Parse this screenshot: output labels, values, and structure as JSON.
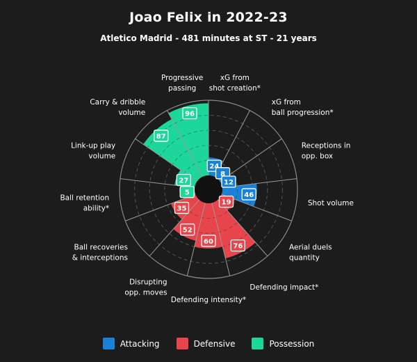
{
  "title": "Joao Felix in 2022-23",
  "subtitle": "Atletico Madrid - 481 minutes at ST - 21 years",
  "colors": {
    "Attacking": "#1a82d6",
    "Defensive": "#e8444c",
    "Possession": "#1dd69a",
    "background": "#1c1c1c",
    "grid": "#6a6a6a"
  },
  "legend": [
    {
      "label": "Attacking",
      "color": "#1a82d6"
    },
    {
      "label": "Defensive",
      "color": "#e8444c"
    },
    {
      "label": "Possession",
      "color": "#1dd69a"
    }
  ],
  "chart_data": {
    "type": "polar-bar",
    "range": [
      0,
      100
    ],
    "gridlines": [
      20,
      40,
      60,
      80
    ],
    "metrics": [
      {
        "label": [
          "xG from",
          "shot creation*"
        ],
        "value": 24,
        "group": "Attacking"
      },
      {
        "label": [
          "xG from",
          "ball progression*"
        ],
        "value": 8,
        "group": "Attacking"
      },
      {
        "label": [
          "Receptions in",
          "opp. box"
        ],
        "value": 12,
        "group": "Attacking"
      },
      {
        "label": [
          "Shot volume"
        ],
        "value": 46,
        "group": "Attacking"
      },
      {
        "label": [
          "Aerial duels",
          "quantity"
        ],
        "value": 19,
        "group": "Defensive"
      },
      {
        "label": [
          "Defending impact*"
        ],
        "value": 76,
        "group": "Defensive"
      },
      {
        "label": [
          "Defending intensity*"
        ],
        "value": 60,
        "group": "Defensive"
      },
      {
        "label": [
          "Disrupting",
          "opp. moves"
        ],
        "value": 52,
        "group": "Defensive"
      },
      {
        "label": [
          "Ball recoveries",
          "& interceptions"
        ],
        "value": 35,
        "group": "Defensive"
      },
      {
        "label": [
          "Ball retention",
          "ability*"
        ],
        "value": 5,
        "group": "Possession"
      },
      {
        "label": [
          "Link-up play",
          "volume"
        ],
        "value": 27,
        "group": "Possession"
      },
      {
        "label": [
          "Carry & dribble",
          "volume"
        ],
        "value": 87,
        "group": "Possession"
      },
      {
        "label": [
          "Progressive",
          "passing"
        ],
        "value": 96,
        "group": "Possession"
      }
    ]
  }
}
